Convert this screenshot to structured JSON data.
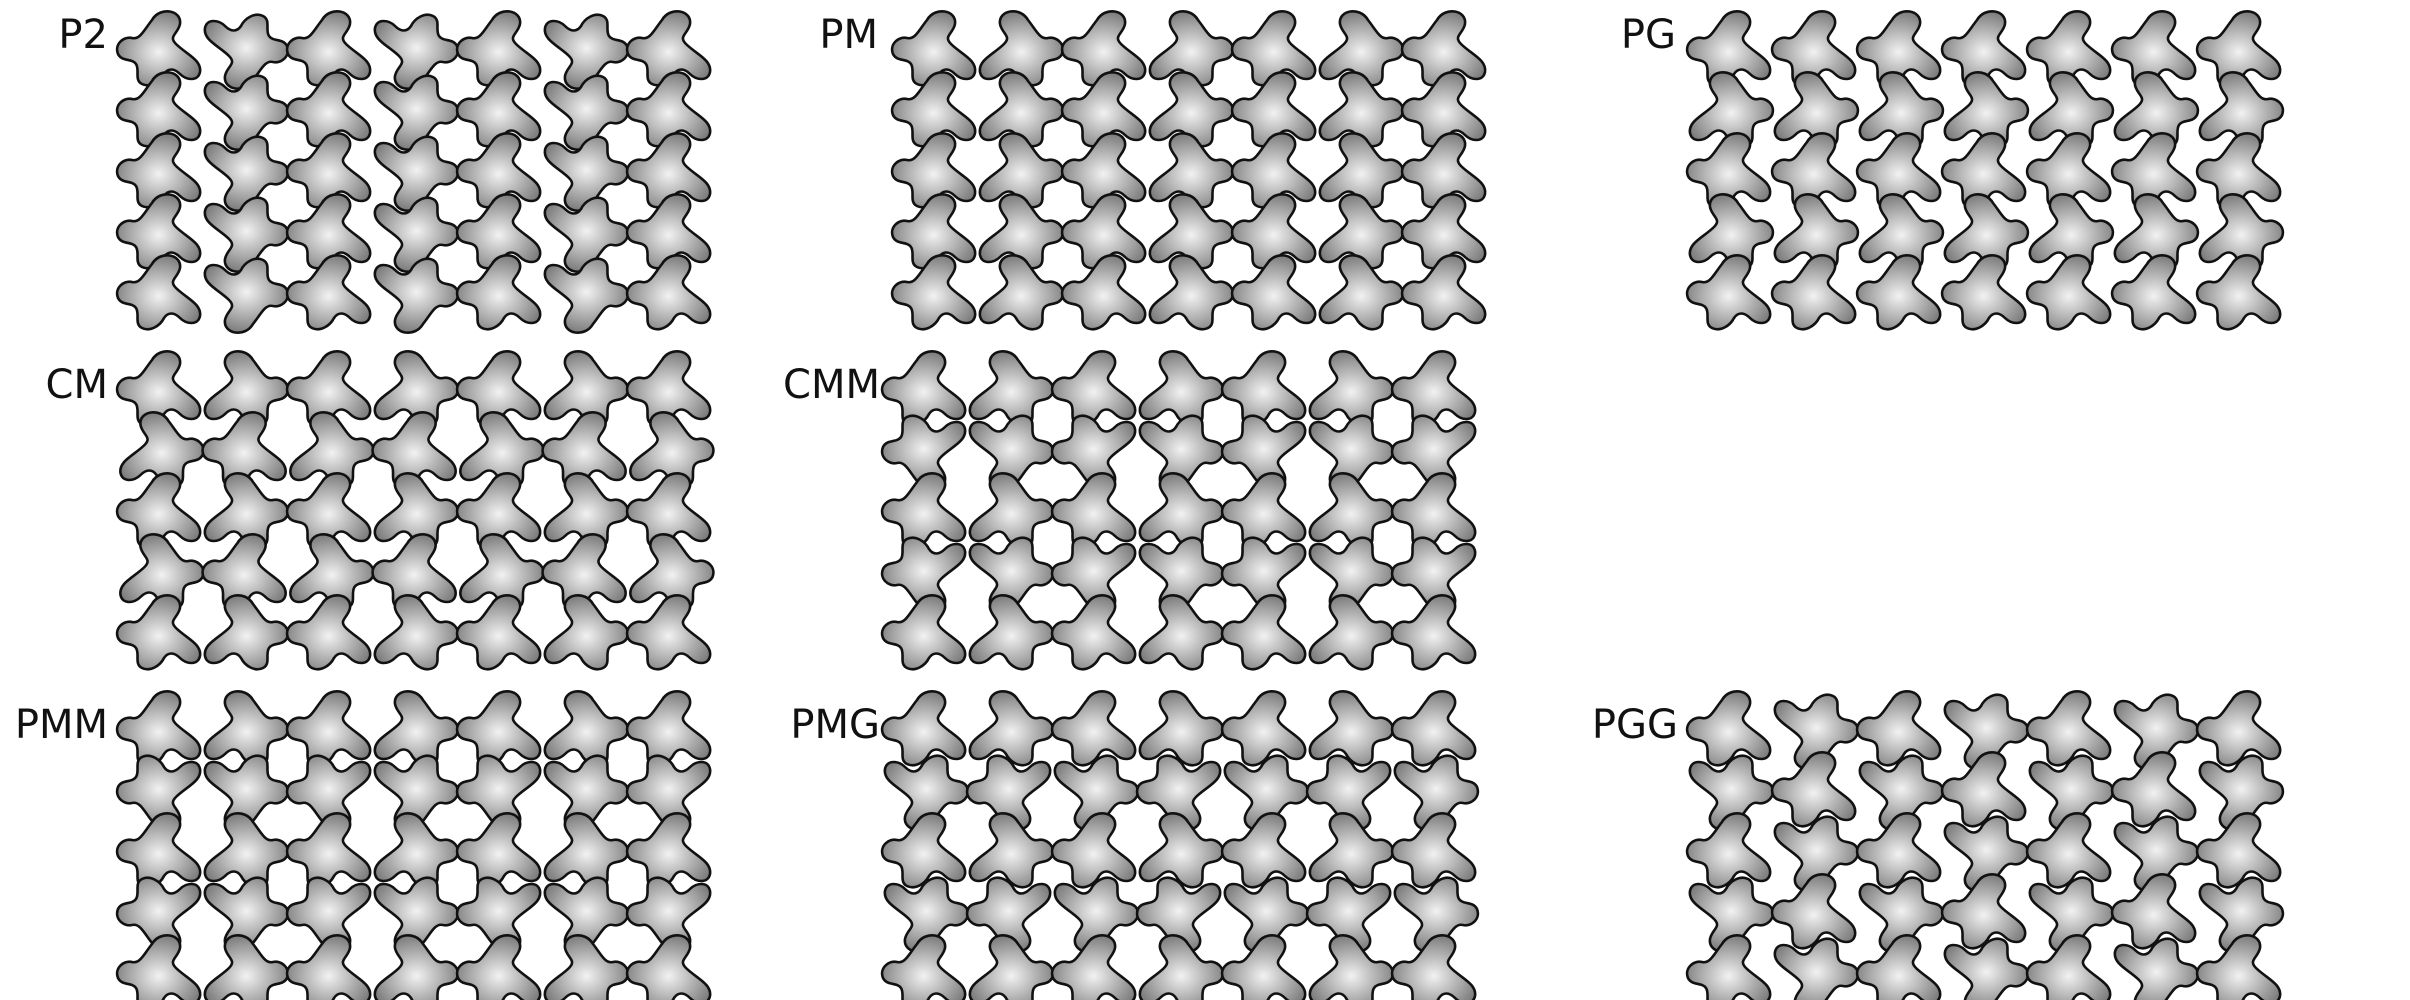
{
  "figure": {
    "panels": [
      {
        "label": "P2",
        "group": "p2"
      },
      {
        "label": "PM",
        "group": "pm"
      },
      {
        "label": "PG",
        "group": "pg"
      },
      {
        "label": "CM",
        "group": "cm"
      },
      {
        "label": "CMM",
        "group": "cmm"
      },
      {
        "label": "PMM",
        "group": "pmm"
      },
      {
        "label": "PMG",
        "group": "pmg"
      },
      {
        "label": "PGG",
        "group": "pgg"
      }
    ],
    "tile_fill_light": "#f2f2f2",
    "tile_fill_dark": "#6e6e6e",
    "tile_stroke": "#111111"
  }
}
